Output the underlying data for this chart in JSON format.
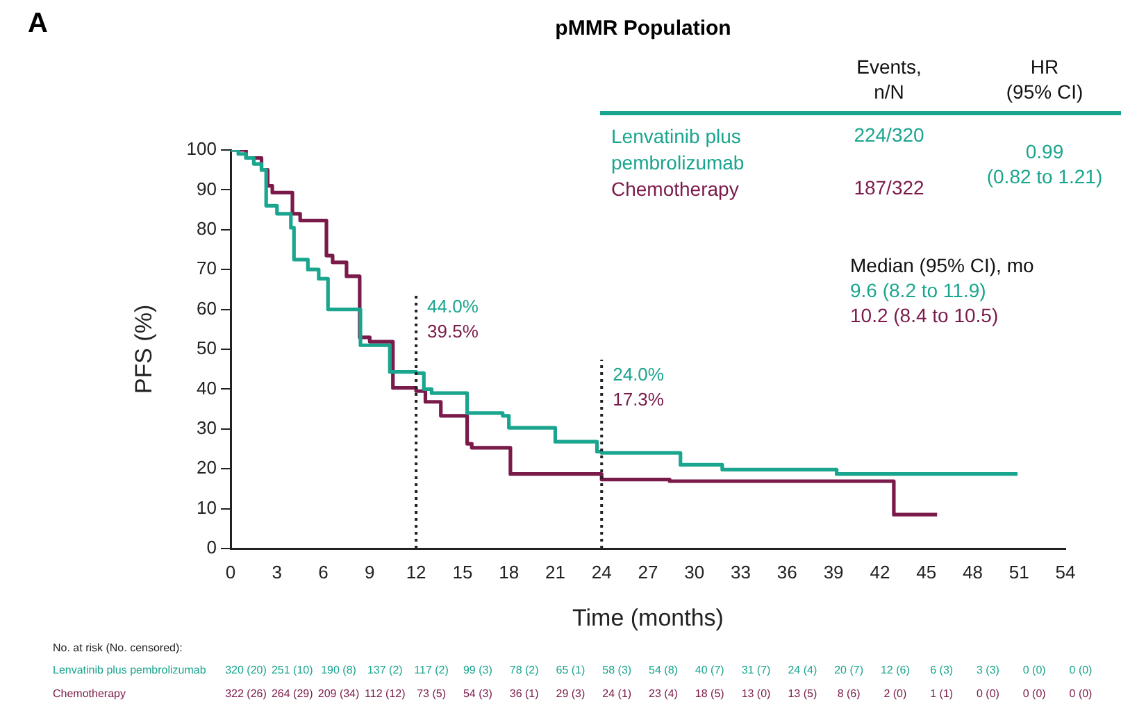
{
  "chart_data": {
    "type": "step",
    "title": "pMMR Population",
    "xlabel": "Time (months)",
    "ylabel": "PFS (%)",
    "xlim": [
      0,
      54
    ],
    "xticks": [
      0,
      3,
      6,
      9,
      12,
      15,
      18,
      21,
      24,
      27,
      30,
      33,
      36,
      39,
      42,
      45,
      48,
      51,
      54
    ],
    "ylim": [
      0,
      100
    ],
    "yticks": [
      0,
      10,
      20,
      30,
      40,
      50,
      60,
      70,
      80,
      90,
      100
    ],
    "grid": false,
    "legend": "top right",
    "marker": "none",
    "line_style": "solid",
    "series": [
      {
        "name": "Lenvatinib plus pembrolizumab",
        "color": "#1aa58e",
        "x": [
          0,
          0.5,
          1,
          1.5,
          2,
          2.3,
          3,
          3.9,
          4.1,
          5,
          5.7,
          6.3,
          8.4,
          10.3,
          12,
          12.5,
          13,
          15.3,
          17.6,
          18,
          21,
          23.7,
          24,
          29.1,
          31.8,
          39.2,
          50.9
        ],
        "values": [
          100,
          99,
          98,
          96.5,
          95,
          86,
          84,
          80.5,
          72.5,
          70,
          67.7,
          60,
          51,
          44.3,
          44.0,
          40,
          39,
          34,
          33.3,
          30.3,
          26.8,
          24.3,
          24.0,
          21,
          19.8,
          18.7,
          18.7
        ]
      },
      {
        "name": "Chemotherapy",
        "color": "#7a1a4a",
        "x": [
          0,
          1,
          2,
          2.4,
          2.7,
          4,
          4.5,
          6.2,
          6.6,
          7.5,
          8.35,
          9,
          10.5,
          12,
          12.6,
          13.6,
          15.3,
          15.6,
          18.1,
          24,
          28.4,
          42.9,
          45.7
        ],
        "values": [
          100,
          98,
          95,
          91,
          89.3,
          84,
          82.3,
          73.5,
          71.8,
          68.3,
          53,
          51.9,
          40.3,
          39.5,
          36.8,
          33.3,
          26.3,
          25.3,
          18.7,
          17.3,
          16.9,
          8.5,
          8.5
        ]
      }
    ],
    "ref_lines": [
      {
        "axis": "x",
        "value": 12,
        "color": "#222222",
        "line_style": "dotted"
      },
      {
        "axis": "x",
        "value": 24,
        "color": "#222222",
        "line_style": "dotted"
      }
    ],
    "annotations": [
      "A",
      "Events,",
      "n/N",
      "HR",
      "(95% CI)",
      "224/320",
      "187/322",
      "0.99",
      "(0.82 to 1.21)",
      "Median (95% CI), mo",
      "9.6 (8.2 to 11.9)",
      "10.2 (8.4 to 10.5)",
      "No. at risk (No. censored):",
      "44.0%",
      "39.5%",
      "24.0%",
      "17.3%",
      "320 (20)",
      "251 (10)",
      "190 (8)",
      "137 (2)",
      "117 (2)",
      "99 (3)",
      "78 (2)",
      "65 (1)",
      "58 (3)",
      "54 (8)",
      "40 (7)",
      "31 (7)",
      "24 (4)",
      "20 (7)",
      "12 (6)",
      "6 (3)",
      "3 (3)",
      "0 (0)",
      "0 (0)",
      "322 (26)",
      "264 (29)",
      "209 (34)",
      "112 (12)",
      "73 (5)",
      "54 (3)",
      "36 (1)",
      "29 (3)",
      "24 (1)",
      "23 (4)",
      "18 (5)",
      "13 (0)",
      "13 (5)",
      "8 (6)",
      "2 (0)",
      "1 (1)",
      "0 (0)",
      "0 (0)",
      "0 (0)"
    ]
  }
}
